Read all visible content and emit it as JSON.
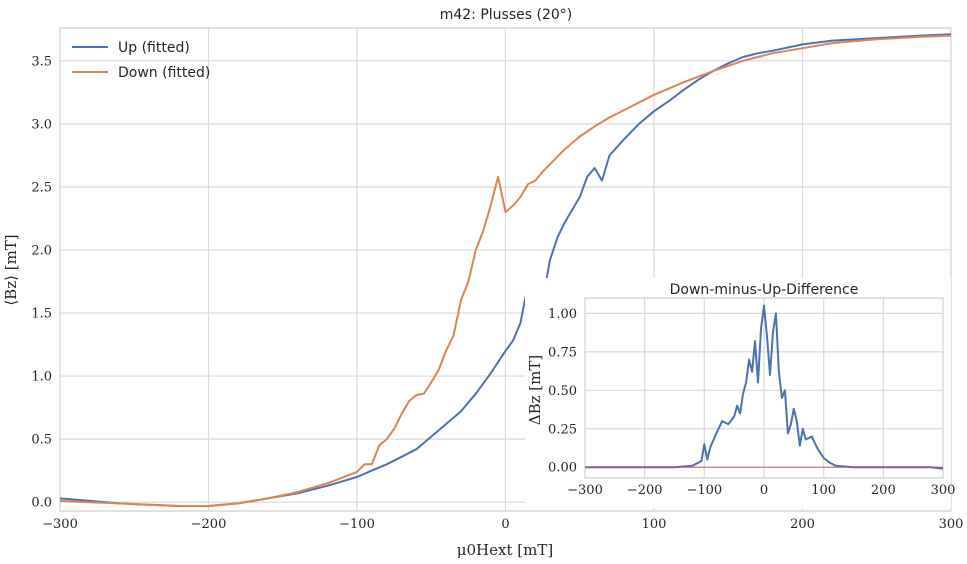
{
  "chart_data": [
    {
      "type": "line",
      "title": "m42: Plusses (20°)",
      "xlabel": "μ0Hext [mT]",
      "ylabel": "⟨Bz⟩ [mT]",
      "xlim": [
        -300,
        300
      ],
      "ylim": [
        -0.07,
        3.76
      ],
      "xticks": [
        -300,
        -200,
        -100,
        0,
        100,
        200,
        300
      ],
      "xtick_labels": [
        "−300",
        "−200",
        "−100",
        "0",
        "100",
        "200",
        "300"
      ],
      "yticks": [
        0.0,
        0.5,
        1.0,
        1.5,
        2.0,
        2.5,
        3.0,
        3.5
      ],
      "ytick_labels": [
        "0.0",
        "0.5",
        "1.0",
        "1.5",
        "2.0",
        "2.5",
        "3.0",
        "3.5"
      ],
      "grid": true,
      "legend": "top-left",
      "series": [
        {
          "name": "Up (fitted)",
          "color": "#4c72b0",
          "x": [
            -300,
            -280,
            -260,
            -240,
            -220,
            -200,
            -180,
            -160,
            -140,
            -120,
            -100,
            -90,
            -80,
            -70,
            -60,
            -50,
            -40,
            -30,
            -20,
            -10,
            0,
            5,
            10,
            15,
            20,
            25,
            30,
            35,
            40,
            45,
            50,
            55,
            60,
            65,
            70,
            80,
            90,
            100,
            110,
            120,
            130,
            140,
            150,
            160,
            170,
            180,
            200,
            220,
            250,
            280,
            300
          ],
          "y": [
            0.03,
            0.01,
            -0.01,
            -0.02,
            -0.03,
            -0.03,
            -0.01,
            0.03,
            0.07,
            0.13,
            0.2,
            0.25,
            0.3,
            0.36,
            0.42,
            0.52,
            0.62,
            0.72,
            0.86,
            1.02,
            1.2,
            1.28,
            1.42,
            1.72,
            1.35,
            1.6,
            1.92,
            2.1,
            2.22,
            2.32,
            2.42,
            2.58,
            2.65,
            2.55,
            2.75,
            2.88,
            3.0,
            3.1,
            3.18,
            3.27,
            3.35,
            3.42,
            3.48,
            3.53,
            3.56,
            3.58,
            3.63,
            3.66,
            3.68,
            3.7,
            3.71
          ]
        },
        {
          "name": "Down (fitted)",
          "color": "#dd8452",
          "x": [
            -300,
            -280,
            -260,
            -240,
            -220,
            -200,
            -180,
            -160,
            -140,
            -120,
            -100,
            -95,
            -90,
            -85,
            -80,
            -75,
            -70,
            -65,
            -60,
            -55,
            -50,
            -45,
            -40,
            -35,
            -30,
            -25,
            -20,
            -15,
            -10,
            -5,
            0,
            5,
            10,
            15,
            20,
            25,
            30,
            40,
            50,
            60,
            70,
            80,
            100,
            120,
            140,
            160,
            180,
            200,
            220,
            250,
            280,
            300
          ],
          "y": [
            0.01,
            0.0,
            -0.01,
            -0.02,
            -0.03,
            -0.03,
            -0.01,
            0.03,
            0.08,
            0.15,
            0.24,
            0.3,
            0.3,
            0.45,
            0.5,
            0.58,
            0.7,
            0.8,
            0.85,
            0.86,
            0.95,
            1.05,
            1.2,
            1.32,
            1.6,
            1.75,
            2.0,
            2.15,
            2.35,
            2.58,
            2.3,
            2.35,
            2.42,
            2.52,
            2.55,
            2.62,
            2.68,
            2.8,
            2.9,
            2.98,
            3.05,
            3.11,
            3.23,
            3.33,
            3.42,
            3.5,
            3.56,
            3.6,
            3.64,
            3.67,
            3.69,
            3.7
          ]
        }
      ]
    },
    {
      "type": "line",
      "title": "Down-minus-Up-Difference",
      "xlabel": "",
      "ylabel": "ΔBz [mT]",
      "xlim": [
        -300,
        300
      ],
      "ylim": [
        -0.07,
        1.1
      ],
      "xticks": [
        -300,
        -200,
        -100,
        0,
        100,
        200,
        300
      ],
      "xtick_labels": [
        "−300",
        "−200",
        "−100",
        "0",
        "100",
        "200",
        "300"
      ],
      "yticks": [
        0.0,
        0.25,
        0.5,
        0.75,
        1.0
      ],
      "ytick_labels": [
        "0.00",
        "0.25",
        "0.50",
        "0.75",
        "1.00"
      ],
      "grid": true,
      "legend": "none",
      "series": [
        {
          "color": "#4c72b0",
          "x": [
            -300,
            -250,
            -200,
            -150,
            -120,
            -105,
            -100,
            -95,
            -90,
            -80,
            -70,
            -60,
            -50,
            -45,
            -40,
            -35,
            -30,
            -25,
            -20,
            -15,
            -10,
            -5,
            0,
            5,
            10,
            15,
            20,
            25,
            30,
            35,
            40,
            45,
            50,
            55,
            60,
            65,
            70,
            80,
            90,
            100,
            110,
            120,
            150,
            200,
            250,
            280,
            300
          ],
          "y": [
            0.0,
            0.0,
            0.0,
            0.0,
            0.01,
            0.04,
            0.15,
            0.05,
            0.13,
            0.22,
            0.3,
            0.28,
            0.33,
            0.4,
            0.35,
            0.48,
            0.55,
            0.7,
            0.62,
            0.82,
            0.55,
            0.9,
            1.05,
            0.85,
            0.6,
            0.88,
            1.0,
            0.62,
            0.45,
            0.5,
            0.22,
            0.28,
            0.38,
            0.3,
            0.14,
            0.25,
            0.18,
            0.2,
            0.12,
            0.06,
            0.03,
            0.01,
            0.0,
            0.0,
            0.0,
            0.0,
            -0.01
          ]
        },
        {
          "color": "#c44e52",
          "x": [
            -300,
            300
          ],
          "y": [
            0,
            0
          ]
        }
      ]
    }
  ]
}
